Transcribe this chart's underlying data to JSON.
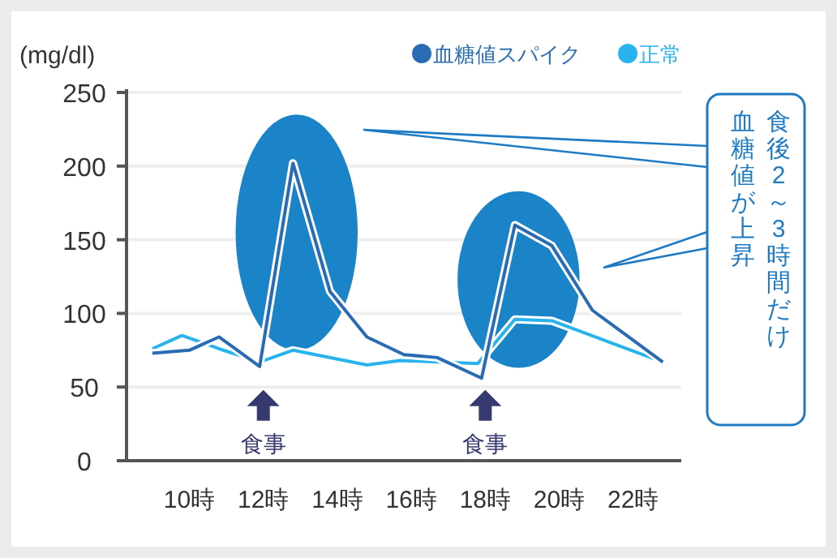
{
  "chart_data": {
    "type": "line",
    "ylabel": "(mg/dl)",
    "xlim": [
      8.3,
      23.3
    ],
    "ylim": [
      0,
      250
    ],
    "xticks": [
      {
        "value": 10,
        "label": "10時"
      },
      {
        "value": 12,
        "label": "12時"
      },
      {
        "value": 14,
        "label": "14時"
      },
      {
        "value": 16,
        "label": "16時"
      },
      {
        "value": 18,
        "label": "18時"
      },
      {
        "value": 20,
        "label": "20時"
      },
      {
        "value": 22,
        "label": "22時"
      }
    ],
    "yticks": [
      0,
      50,
      100,
      150,
      200,
      250
    ],
    "grid": "y",
    "legend": "top right",
    "marker": "none",
    "line_style": "solid",
    "series": [
      {
        "name": "血糖値スパイク",
        "color": "#2a6cb4",
        "x": [
          9,
          10,
          10.8,
          11.9,
          12.8,
          13.8,
          14.8,
          15.8,
          16.7,
          17.9,
          18.8,
          19.8,
          20.9,
          22.8
        ],
        "values": [
          73,
          75,
          84,
          64,
          202,
          115,
          84,
          72,
          70,
          56,
          160,
          146,
          102,
          67
        ]
      },
      {
        "name": "正常",
        "color": "#29b3ee",
        "x": [
          9,
          9.8,
          10.8,
          11.9,
          12.8,
          14.8,
          15.7,
          17.8,
          18.8,
          19.8,
          22.8
        ],
        "values": [
          76,
          85,
          76,
          67,
          75,
          65,
          68,
          66,
          96,
          95,
          67
        ]
      }
    ],
    "annotations": [
      "食事",
      "食事",
      "食後2～3時間だけ",
      "血糖値が上昇"
    ]
  }
}
